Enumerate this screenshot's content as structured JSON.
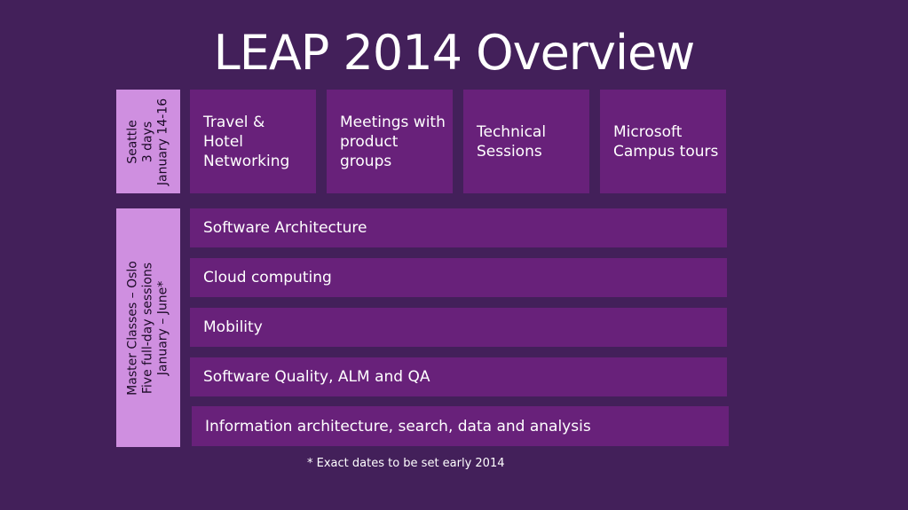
{
  "title": "LEAP 2014 Overview",
  "seattle": {
    "lines": [
      "Seattle",
      "3 days",
      "January 14-16"
    ],
    "tiles": [
      "Travel & Hotel Networking",
      "Meetings with product groups",
      "Technical Sessions",
      "Microsoft Campus tours"
    ]
  },
  "master_classes": {
    "lines": [
      "Master Classes – Oslo",
      "Five full-day sessions",
      "January – June*"
    ],
    "sessions": [
      "Software Architecture",
      "Cloud computing",
      "Mobility",
      "Software Quality, ALM and QA",
      "Information architecture, search, data and analysis"
    ]
  },
  "footnote": "* Exact dates to be set early 2014",
  "colors": {
    "background": "#43205a",
    "tile": "#68217a",
    "side_label": "#cf8fe0"
  }
}
